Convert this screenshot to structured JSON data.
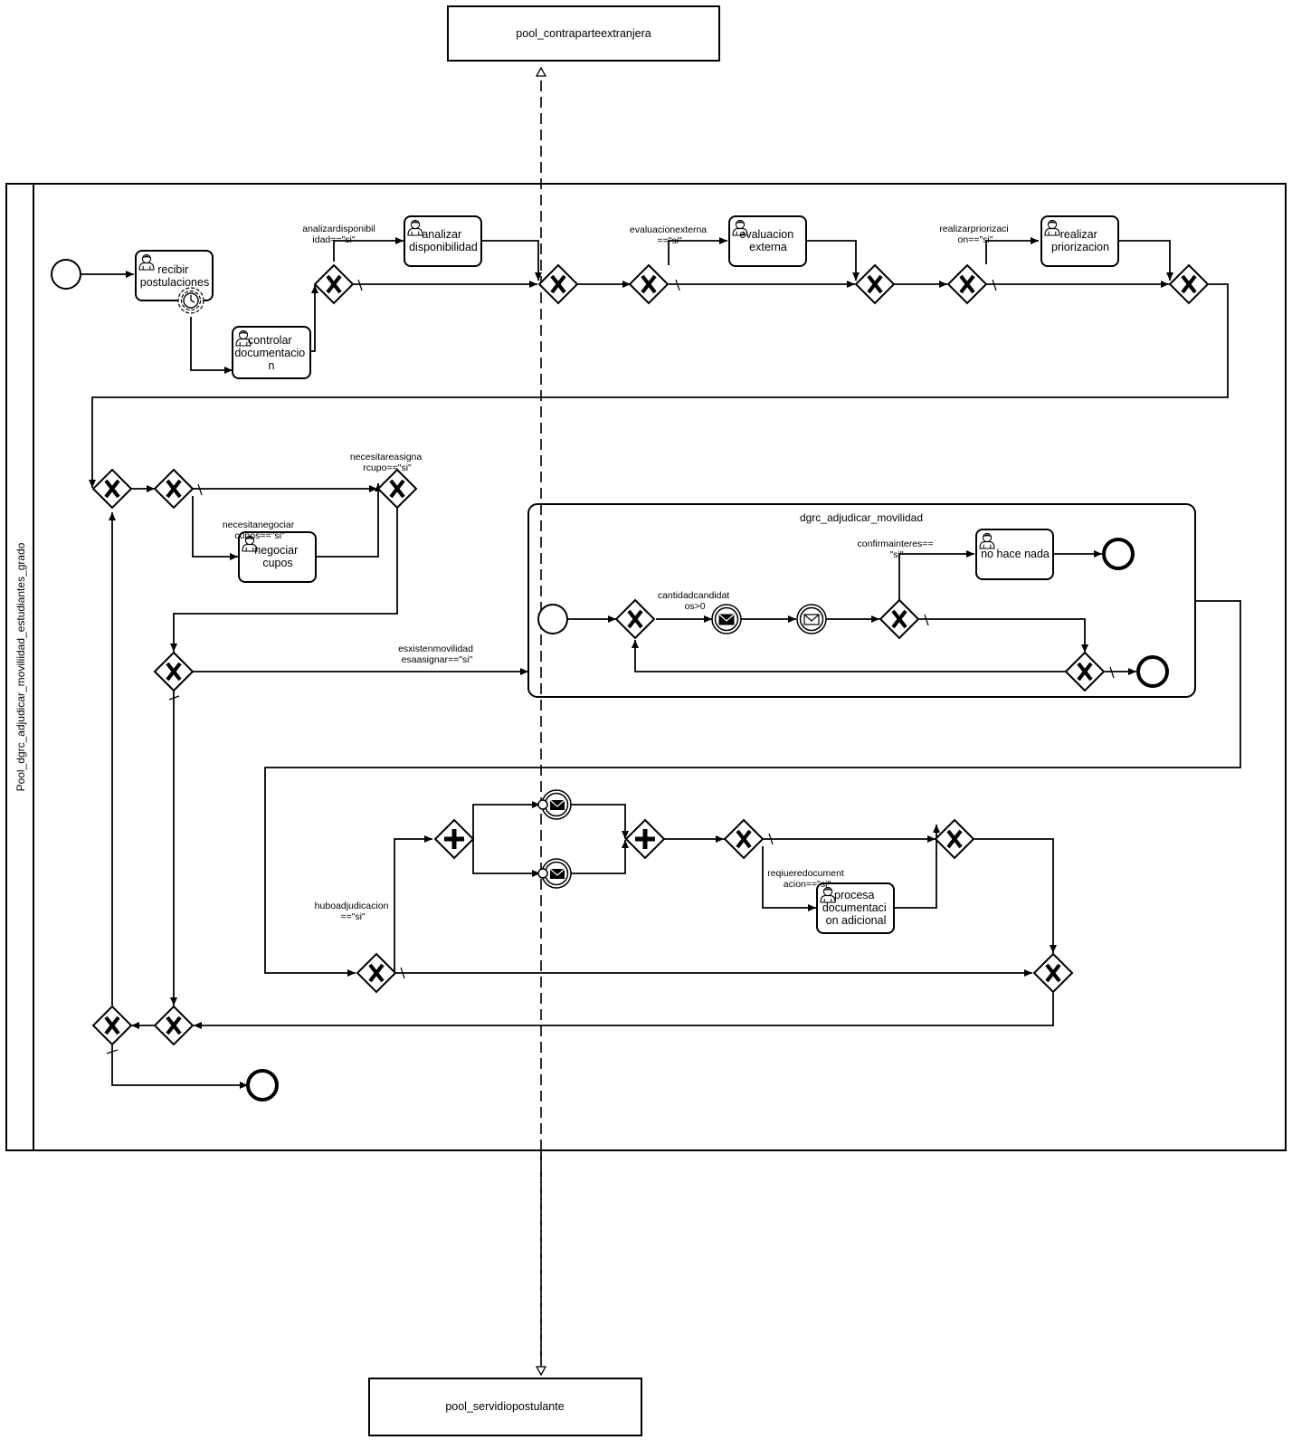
{
  "pools": {
    "top": "pool_contraparteextranjera",
    "main": "Pool_dgrc_adjudicar_moviliidad_estudiantes_grado",
    "bottom": "pool_servidiopostulante"
  },
  "tasks": {
    "recibir": [
      "recibir",
      "postulaciones"
    ],
    "controlar": [
      "controlar",
      "documentacio",
      "n"
    ],
    "analizar": [
      "analizar",
      "disponibilidad"
    ],
    "evaluacion": [
      "evaluacion",
      "externa"
    ],
    "priorizacion": [
      "realizar",
      "priorizacion"
    ],
    "negociar": [
      "negociar",
      "cupos"
    ],
    "nohace": [
      "no hace nada"
    ],
    "procesa": [
      "procesa",
      "documentaci",
      "on adicional"
    ]
  },
  "subprocess": {
    "title": "dgrc_adjudicar_movilidad"
  },
  "conditions": {
    "analizar": [
      "analizardisponibil",
      "idad==\"si\""
    ],
    "evaluacion": [
      "evaluacionexterna",
      "==\"si\""
    ],
    "priorizacion": [
      "realizarpriorizaci",
      "on==\"si\""
    ],
    "asignar": [
      "necesitareasigna",
      "rcupo==\"si\""
    ],
    "negociar": [
      "necesitanegociar",
      "cupos==\"si\""
    ],
    "movilidades": [
      "esxistenmovilidad",
      "esaasignar==\"si\""
    ],
    "candidatos": [
      "cantidadcandidat",
      "os>0"
    ],
    "confirma": [
      "confirmainteres==",
      "\"si\""
    ],
    "adjudicacion": [
      "huboadjudicacion",
      "==\"si\""
    ],
    "documentacion": [
      "reqiueredocument",
      "acion==\"si\""
    ]
  }
}
